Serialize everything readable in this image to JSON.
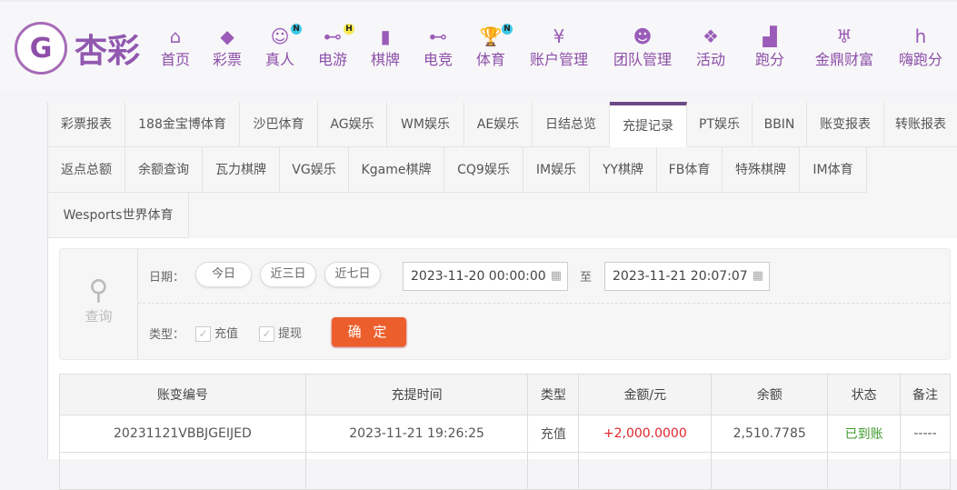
{
  "brand": {
    "name": "杏彩",
    "colors": {
      "primary": "#8e4fa9",
      "accent": "#ec5f2c",
      "positive": "#e2262c",
      "success": "#3f9b2c"
    }
  },
  "nav": [
    {
      "label": "首页",
      "icon": "home-icon"
    },
    {
      "label": "彩票",
      "icon": "ticket-icon"
    },
    {
      "label": "真人",
      "icon": "dealer-icon",
      "badge": "N"
    },
    {
      "label": "电游",
      "icon": "gamepad-icon",
      "badge": "H"
    },
    {
      "label": "棋牌",
      "icon": "cards-icon"
    },
    {
      "label": "电竞",
      "icon": "gamepad-icon"
    },
    {
      "label": "体育",
      "icon": "trophy-icon",
      "badge": "N"
    },
    {
      "label": "账户管理",
      "icon": "yen-icon"
    },
    {
      "label": "团队管理",
      "icon": "team-icon"
    },
    {
      "label": "活动",
      "icon": "gift-icon"
    },
    {
      "label": "跑分",
      "icon": "rhino-icon"
    },
    {
      "label": "金鼎财富",
      "icon": "ding-icon"
    },
    {
      "label": "嗨跑分",
      "icon": "hi-icon"
    }
  ],
  "tabs": [
    [
      "彩票报表",
      "188金宝博体育",
      "沙巴体育",
      "AG娱乐",
      "WM娱乐",
      "AE娱乐",
      "日结总览",
      "充提记录",
      "PT娱乐",
      "BBIN",
      "账变报表",
      "转账报表"
    ],
    [
      "返点总额",
      "余额查询",
      "瓦力棋牌",
      "VG娱乐",
      "Kgame棋牌",
      "CQ9娱乐",
      "IM娱乐",
      "YY棋牌",
      "FB体育",
      "特殊棋牌",
      "IM体育"
    ],
    [
      "Wesports世界体育"
    ]
  ],
  "active_tab": "充提记录",
  "query": {
    "title": "查询",
    "date_label": "日期：",
    "quick": [
      "今日",
      "近三日",
      "近七日"
    ],
    "start": "2023-11-20 00:00:00",
    "to": "至",
    "end": "2023-11-21 20:07:07",
    "type_label": "类型：",
    "types": [
      {
        "label": "充值",
        "checked": true
      },
      {
        "label": "提现",
        "checked": true
      }
    ],
    "submit": "确 定"
  },
  "table": {
    "headers": [
      "账变编号",
      "充提时间",
      "类型",
      "金额/元",
      "余额",
      "状态",
      "备注"
    ],
    "rows": [
      [
        "20231121VBBJGEIJED",
        "2023-11-21 19:26:25",
        "充值",
        "+2,000.0000",
        "2,510.7785",
        "已到账",
        "-----"
      ]
    ]
  }
}
